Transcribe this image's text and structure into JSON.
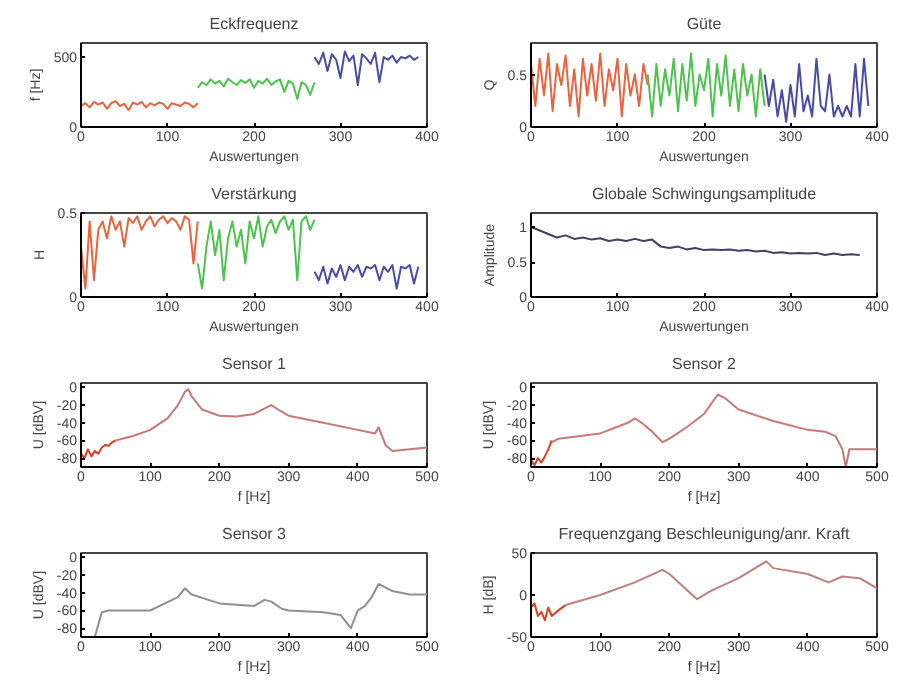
{
  "chart_data": [
    {
      "type": "line",
      "title": "Eckfrequenz",
      "xlabel": "Auswertungen",
      "ylabel": "f [Hz]",
      "xlim": [
        0,
        400
      ],
      "ylim": [
        0,
        600
      ],
      "xticks": [
        0,
        100,
        200,
        300,
        400
      ],
      "yticks": [
        0,
        500
      ],
      "grid": false,
      "series": [
        {
          "color": "#e8643c",
          "x": [
            0,
            5,
            10,
            15,
            20,
            25,
            30,
            35,
            40,
            45,
            50,
            55,
            60,
            65,
            70,
            75,
            80,
            85,
            90,
            95,
            100,
            105,
            110,
            115,
            120,
            125,
            130,
            135
          ],
          "values": [
            150,
            170,
            140,
            180,
            160,
            175,
            130,
            170,
            185,
            150,
            165,
            120,
            175,
            160,
            180,
            140,
            170,
            155,
            175,
            165,
            130,
            170,
            160,
            150,
            175,
            165,
            140,
            170
          ]
        },
        {
          "color": "#4cc44c",
          "x": [
            135,
            140,
            145,
            150,
            155,
            160,
            165,
            170,
            175,
            180,
            185,
            190,
            195,
            200,
            205,
            210,
            215,
            220,
            225,
            230,
            235,
            240,
            245,
            250,
            255,
            260,
            265,
            270
          ],
          "values": [
            280,
            320,
            300,
            340,
            310,
            330,
            290,
            345,
            320,
            300,
            335,
            315,
            340,
            280,
            330,
            310,
            345,
            300,
            325,
            340,
            250,
            330,
            310,
            200,
            320,
            300,
            230,
            320
          ]
        },
        {
          "color": "#4a4aa8",
          "x": [
            270,
            275,
            280,
            285,
            290,
            295,
            300,
            305,
            310,
            315,
            320,
            325,
            330,
            335,
            340,
            345,
            350,
            355,
            360,
            365,
            370,
            375,
            380,
            385,
            390
          ],
          "values": [
            500,
            450,
            530,
            400,
            520,
            480,
            350,
            540,
            470,
            510,
            300,
            520,
            490,
            450,
            530,
            320,
            500,
            480,
            510,
            460,
            500,
            490,
            510,
            480,
            500
          ]
        }
      ]
    },
    {
      "type": "line",
      "title": "Güte",
      "xlabel": "Auswertungen",
      "ylabel": "Q",
      "xlim": [
        0,
        400
      ],
      "ylim": [
        0,
        0.8
      ],
      "xticks": [
        0,
        100,
        200,
        300,
        400
      ],
      "yticks": [
        0,
        0.5
      ],
      "grid": false,
      "series": [
        {
          "color": "#e8643c",
          "x": [
            0,
            5,
            10,
            15,
            20,
            25,
            30,
            35,
            40,
            45,
            50,
            55,
            60,
            65,
            70,
            75,
            80,
            85,
            90,
            95,
            100,
            105,
            110,
            115,
            120,
            125,
            130,
            135
          ],
          "values": [
            0.6,
            0.2,
            0.65,
            0.3,
            0.7,
            0.15,
            0.6,
            0.4,
            0.68,
            0.2,
            0.55,
            0.1,
            0.65,
            0.3,
            0.6,
            0.25,
            0.7,
            0.2,
            0.55,
            0.35,
            0.65,
            0.1,
            0.6,
            0.3,
            0.5,
            0.2,
            0.6,
            0.4
          ]
        },
        {
          "color": "#4cc44c",
          "x": [
            135,
            140,
            145,
            150,
            155,
            160,
            165,
            170,
            175,
            180,
            185,
            190,
            195,
            200,
            205,
            210,
            215,
            220,
            225,
            230,
            235,
            240,
            245,
            250,
            255,
            260,
            265,
            270
          ],
          "values": [
            0.5,
            0.1,
            0.6,
            0.2,
            0.55,
            0.3,
            0.65,
            0.15,
            0.6,
            0.25,
            0.7,
            0.2,
            0.5,
            0.35,
            0.65,
            0.1,
            0.6,
            0.3,
            0.68,
            0.2,
            0.55,
            0.15,
            0.6,
            0.3,
            0.5,
            0.1,
            0.55,
            0.2
          ]
        },
        {
          "color": "#4a4aa8",
          "x": [
            270,
            275,
            280,
            285,
            290,
            295,
            300,
            305,
            310,
            315,
            320,
            325,
            330,
            335,
            340,
            345,
            350,
            355,
            360,
            365,
            370,
            375,
            380,
            385,
            390
          ],
          "values": [
            0.5,
            0.2,
            0.45,
            0.1,
            0.35,
            0.05,
            0.4,
            0.1,
            0.6,
            0.15,
            0.3,
            0.1,
            0.65,
            0.2,
            0.15,
            0.5,
            0.1,
            0.2,
            0.1,
            0.2,
            0.1,
            0.6,
            0.1,
            0.65,
            0.2
          ]
        }
      ]
    },
    {
      "type": "line",
      "title": "Verstärkung",
      "xlabel": "Auswertungen",
      "ylabel": "H",
      "xlim": [
        0,
        400
      ],
      "ylim": [
        0,
        0.5
      ],
      "xticks": [
        0,
        100,
        200,
        300,
        400
      ],
      "yticks": [
        0,
        0.5
      ],
      "grid": false,
      "series": [
        {
          "color": "#e8643c",
          "x": [
            0,
            5,
            10,
            15,
            20,
            25,
            30,
            35,
            40,
            45,
            50,
            55,
            60,
            65,
            70,
            75,
            80,
            85,
            90,
            95,
            100,
            105,
            110,
            115,
            120,
            125,
            130,
            135
          ],
          "values": [
            0.3,
            0.05,
            0.45,
            0.1,
            0.4,
            0.45,
            0.35,
            0.48,
            0.4,
            0.45,
            0.3,
            0.47,
            0.44,
            0.48,
            0.4,
            0.45,
            0.48,
            0.42,
            0.46,
            0.48,
            0.44,
            0.47,
            0.45,
            0.4,
            0.48,
            0.46,
            0.2,
            0.45
          ]
        },
        {
          "color": "#4cc44c",
          "x": [
            135,
            140,
            145,
            150,
            155,
            160,
            165,
            170,
            175,
            180,
            185,
            190,
            195,
            200,
            205,
            210,
            215,
            220,
            225,
            230,
            235,
            240,
            245,
            250,
            255,
            260,
            265,
            270
          ],
          "values": [
            0.2,
            0.05,
            0.3,
            0.45,
            0.25,
            0.4,
            0.1,
            0.35,
            0.45,
            0.3,
            0.4,
            0.2,
            0.45,
            0.35,
            0.48,
            0.3,
            0.42,
            0.46,
            0.38,
            0.45,
            0.48,
            0.4,
            0.46,
            0.1,
            0.45,
            0.48,
            0.4,
            0.46
          ]
        },
        {
          "color": "#4a4aa8",
          "x": [
            270,
            275,
            280,
            285,
            290,
            295,
            300,
            305,
            310,
            315,
            320,
            325,
            330,
            335,
            340,
            345,
            350,
            355,
            360,
            365,
            370,
            375,
            380,
            385,
            390
          ],
          "values": [
            0.15,
            0.1,
            0.18,
            0.08,
            0.17,
            0.12,
            0.19,
            0.1,
            0.18,
            0.15,
            0.19,
            0.12,
            0.18,
            0.17,
            0.19,
            0.1,
            0.18,
            0.15,
            0.19,
            0.05,
            0.18,
            0.17,
            0.19,
            0.08,
            0.18
          ]
        }
      ]
    },
    {
      "type": "line",
      "title": "Globale Schwingungsamplitude",
      "xlabel": "Auswertungen",
      "ylabel": "Amplitude",
      "xlim": [
        0,
        400
      ],
      "ylim": [
        0,
        1.2
      ],
      "xticks": [
        0,
        100,
        200,
        300,
        400
      ],
      "yticks": [
        0,
        0.5,
        1
      ],
      "grid": false,
      "series": [
        {
          "color": "#404060",
          "x": [
            0,
            10,
            20,
            30,
            40,
            50,
            60,
            70,
            80,
            90,
            100,
            110,
            120,
            130,
            140,
            150,
            160,
            170,
            180,
            190,
            200,
            210,
            220,
            230,
            240,
            250,
            260,
            270,
            280,
            290,
            300,
            310,
            320,
            330,
            340,
            350,
            360,
            370,
            380
          ],
          "values": [
            1.0,
            0.95,
            0.9,
            0.85,
            0.88,
            0.83,
            0.85,
            0.82,
            0.84,
            0.8,
            0.82,
            0.8,
            0.83,
            0.8,
            0.82,
            0.72,
            0.7,
            0.72,
            0.68,
            0.7,
            0.67,
            0.68,
            0.67,
            0.68,
            0.66,
            0.67,
            0.65,
            0.66,
            0.63,
            0.64,
            0.62,
            0.63,
            0.62,
            0.63,
            0.6,
            0.62,
            0.6,
            0.61,
            0.6
          ]
        }
      ]
    },
    {
      "type": "line",
      "title": "Sensor 1",
      "xlabel": "f [Hz]",
      "ylabel": "U [dBV]",
      "xlim": [
        0,
        500
      ],
      "ylim": [
        -90,
        5
      ],
      "xticks": [
        0,
        100,
        200,
        300,
        400,
        500
      ],
      "yticks": [
        -80,
        -60,
        -40,
        -20,
        0
      ],
      "grid": false,
      "series": [
        {
          "color": "#d84020",
          "x": [
            0,
            5,
            10,
            15,
            20,
            25,
            30,
            35,
            40,
            45,
            50
          ],
          "values": [
            -75,
            -80,
            -70,
            -78,
            -72,
            -75,
            -68,
            -65,
            -66,
            -62,
            -60
          ]
        },
        {
          "color": "#c87878",
          "x": [
            50,
            75,
            100,
            125,
            140,
            150,
            155,
            160,
            175,
            200,
            225,
            250,
            270,
            275,
            285,
            300,
            350,
            400,
            425,
            430,
            440,
            450,
            475,
            500
          ],
          "values": [
            -60,
            -55,
            -48,
            -35,
            -20,
            -5,
            -2,
            -10,
            -25,
            -32,
            -33,
            -30,
            -22,
            -20,
            -25,
            -32,
            -40,
            -48,
            -52,
            -45,
            -65,
            -72,
            -70,
            -68
          ]
        }
      ]
    },
    {
      "type": "line",
      "title": "Sensor 2",
      "xlabel": "f [Hz]",
      "ylabel": "U [dBV]",
      "xlim": [
        0,
        500
      ],
      "ylim": [
        -90,
        5
      ],
      "xticks": [
        0,
        100,
        200,
        300,
        400,
        500
      ],
      "yticks": [
        -80,
        -60,
        -40,
        -20,
        0
      ],
      "grid": false,
      "series": [
        {
          "color": "#d84020",
          "x": [
            0,
            5,
            10,
            15,
            20,
            25,
            30
          ],
          "values": [
            -82,
            -88,
            -80,
            -85,
            -78,
            -70,
            -60
          ]
        },
        {
          "color": "#c87878",
          "x": [
            30,
            40,
            100,
            140,
            150,
            160,
            175,
            190,
            200,
            225,
            250,
            270,
            280,
            300,
            350,
            400,
            425,
            440,
            450,
            455,
            460,
            500
          ],
          "values": [
            -62,
            -58,
            -52,
            -40,
            -35,
            -40,
            -50,
            -62,
            -58,
            -45,
            -30,
            -8,
            -12,
            -25,
            -38,
            -48,
            -50,
            -55,
            -70,
            -90,
            -70,
            -70
          ]
        }
      ]
    },
    {
      "type": "line",
      "title": "Sensor 3",
      "xlabel": "f [Hz]",
      "ylabel": "U [dBV]",
      "xlim": [
        0,
        500
      ],
      "ylim": [
        -90,
        5
      ],
      "xticks": [
        0,
        100,
        200,
        300,
        400,
        500
      ],
      "yticks": [
        -80,
        -60,
        -40,
        -20,
        0
      ],
      "grid": false,
      "series": [
        {
          "color": "#909090",
          "x": [
            20,
            30,
            40,
            100,
            140,
            150,
            160,
            200,
            250,
            265,
            275,
            290,
            300,
            350,
            375,
            390,
            400,
            410,
            420,
            430,
            450,
            475,
            500
          ],
          "values": [
            -90,
            -62,
            -60,
            -60,
            -45,
            -35,
            -42,
            -52,
            -55,
            -48,
            -50,
            -58,
            -60,
            -62,
            -65,
            -80,
            -60,
            -55,
            -45,
            -30,
            -38,
            -42,
            -42
          ]
        }
      ]
    },
    {
      "type": "line",
      "title": "Frequenzgang Beschleunigung/anr. Kraft",
      "xlabel": "f [Hz]",
      "ylabel": "H [dB]",
      "xlim": [
        0,
        500
      ],
      "ylim": [
        -50,
        50
      ],
      "xticks": [
        0,
        100,
        200,
        300,
        400,
        500
      ],
      "yticks": [
        -50,
        0,
        50
      ],
      "grid": false,
      "series": [
        {
          "color": "#d84020",
          "x": [
            0,
            5,
            10,
            15,
            20,
            25,
            30,
            40,
            50
          ],
          "values": [
            -15,
            -10,
            -25,
            -20,
            -30,
            -15,
            -25,
            -18,
            -12
          ]
        },
        {
          "color": "#c08080",
          "x": [
            50,
            100,
            150,
            190,
            200,
            240,
            260,
            300,
            340,
            350,
            400,
            430,
            450,
            475,
            500
          ],
          "values": [
            -12,
            0,
            15,
            30,
            25,
            -5,
            5,
            20,
            40,
            32,
            25,
            15,
            22,
            20,
            8
          ]
        }
      ]
    }
  ]
}
